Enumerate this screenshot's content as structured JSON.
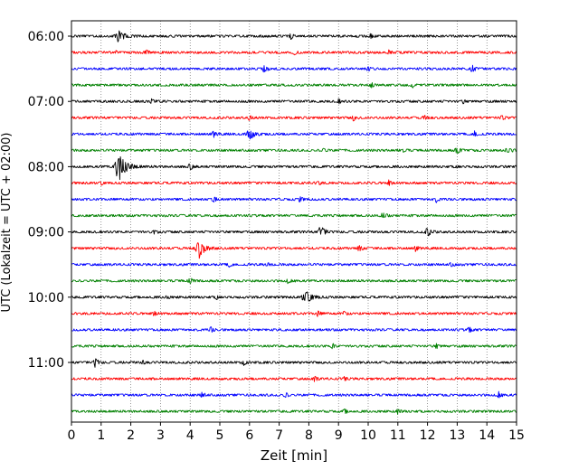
{
  "chart_data": {
    "type": "line",
    "subtype": "helicorder",
    "title": "",
    "xlabel": "Zeit  [min]",
    "ylabel": "UTC (Lokalzeit = UTC + 02:00)",
    "xlim": [
      0,
      15
    ],
    "x_ticks": [
      "0",
      "1",
      "2",
      "3",
      "4",
      "5",
      "6",
      "7",
      "8",
      "9",
      "10",
      "11",
      "12",
      "13",
      "14",
      "15"
    ],
    "x_grid": "dotted vertical lines at each minute",
    "y_tick_labels": [
      "06:00",
      "07:00",
      "08:00",
      "09:00",
      "10:00",
      "11:00"
    ],
    "trace_colors": [
      "#000000",
      "#ff0000",
      "#0000ff",
      "#008000"
    ],
    "traces": [
      {
        "start": "06:00",
        "events": [
          [
            1.6,
            9.0,
            0.55
          ],
          [
            7.4,
            3.5,
            0.25
          ],
          [
            10.1,
            3.5,
            0.25
          ]
        ]
      },
      {
        "start": "06:15",
        "events": [
          [
            1.5,
            2.0,
            0.15
          ],
          [
            2.5,
            4.5,
            0.25
          ],
          [
            7.5,
            3.5,
            0.25
          ],
          [
            10.7,
            3.5,
            0.2
          ]
        ]
      },
      {
        "start": "06:30",
        "events": [
          [
            6.5,
            4.0,
            0.35
          ],
          [
            10.0,
            3.5,
            0.2
          ],
          [
            13.5,
            4.0,
            0.35
          ]
        ]
      },
      {
        "start": "06:45",
        "events": [
          [
            10.1,
            3.5,
            0.25
          ],
          [
            11.5,
            3.5,
            0.2
          ]
        ]
      },
      {
        "start": "07:00",
        "events": [
          [
            2.7,
            3.5,
            0.25
          ],
          [
            9.0,
            3.5,
            0.2
          ],
          [
            13.2,
            2.5,
            0.2
          ]
        ]
      },
      {
        "start": "07:15",
        "events": [
          [
            6.0,
            3.5,
            0.25
          ],
          [
            9.5,
            4.0,
            0.25
          ],
          [
            11.9,
            3.5,
            0.25
          ],
          [
            14.5,
            3.0,
            0.25
          ]
        ]
      },
      {
        "start": "07:30",
        "events": [
          [
            4.8,
            4.5,
            0.3
          ],
          [
            6.0,
            7.0,
            0.55
          ],
          [
            13.6,
            4.5,
            0.3
          ]
        ]
      },
      {
        "start": "07:45",
        "events": [
          [
            8.5,
            3.5,
            0.25
          ],
          [
            11.2,
            3.0,
            0.25
          ],
          [
            13.0,
            5.0,
            0.3
          ],
          [
            14.7,
            5.5,
            0.3
          ]
        ]
      },
      {
        "start": "08:00",
        "events": [
          [
            1.6,
            10.0,
            1.5
          ],
          [
            4.0,
            4.0,
            0.3
          ],
          [
            13.0,
            2.5,
            0.2
          ]
        ]
      },
      {
        "start": "08:15",
        "events": [
          [
            1.0,
            2.0,
            0.2
          ],
          [
            8.3,
            3.5,
            0.25
          ],
          [
            10.7,
            3.0,
            0.25
          ]
        ]
      },
      {
        "start": "08:30",
        "events": [
          [
            4.8,
            4.0,
            0.3
          ],
          [
            7.7,
            3.0,
            0.3
          ],
          [
            12.3,
            3.0,
            0.25
          ]
        ]
      },
      {
        "start": "08:45",
        "events": [
          [
            10.5,
            5.0,
            0.25
          ]
        ]
      },
      {
        "start": "09:00",
        "events": [
          [
            2.8,
            3.5,
            0.2
          ],
          [
            8.4,
            6.0,
            0.55
          ],
          [
            12.0,
            4.5,
            0.45
          ]
        ]
      },
      {
        "start": "09:15",
        "events": [
          [
            4.3,
            7.5,
            1.0
          ],
          [
            9.7,
            4.5,
            0.25
          ],
          [
            11.6,
            4.0,
            0.25
          ]
        ]
      },
      {
        "start": "09:30",
        "events": [
          [
            5.3,
            3.5,
            0.25
          ],
          [
            6.6,
            2.5,
            0.2
          ],
          [
            12.8,
            3.0,
            0.25
          ]
        ]
      },
      {
        "start": "09:45",
        "events": [
          [
            4.0,
            5.0,
            0.25
          ],
          [
            7.3,
            4.0,
            0.2
          ]
        ]
      },
      {
        "start": "10:00",
        "events": [
          [
            3.2,
            3.0,
            0.2
          ],
          [
            4.9,
            3.5,
            0.2
          ],
          [
            7.9,
            9.0,
            0.6
          ]
        ]
      },
      {
        "start": "10:15",
        "events": [
          [
            2.8,
            3.5,
            0.25
          ],
          [
            8.3,
            3.5,
            0.25
          ],
          [
            9.2,
            3.0,
            0.25
          ]
        ]
      },
      {
        "start": "10:30",
        "events": [
          [
            4.7,
            3.5,
            0.25
          ],
          [
            13.4,
            3.5,
            0.3
          ]
        ]
      },
      {
        "start": "10:45",
        "events": [
          [
            8.8,
            4.0,
            0.25
          ],
          [
            12.3,
            3.0,
            0.25
          ]
        ]
      },
      {
        "start": "11:00",
        "events": [
          [
            0.8,
            4.0,
            0.5
          ],
          [
            2.4,
            3.0,
            0.2
          ],
          [
            5.8,
            4.5,
            0.25
          ]
        ]
      },
      {
        "start": "11:15",
        "events": [
          [
            8.2,
            3.5,
            0.25
          ],
          [
            9.2,
            2.5,
            0.25
          ]
        ]
      },
      {
        "start": "11:30",
        "events": [
          [
            4.4,
            3.5,
            0.3
          ],
          [
            7.2,
            3.0,
            0.35
          ],
          [
            14.4,
            3.5,
            0.3
          ]
        ]
      },
      {
        "start": "11:45",
        "events": [
          [
            9.2,
            4.0,
            0.2
          ],
          [
            11.0,
            3.5,
            0.2
          ]
        ]
      }
    ]
  }
}
